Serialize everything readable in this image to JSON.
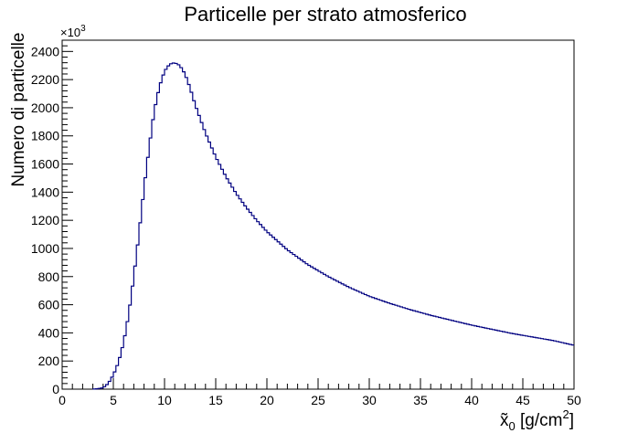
{
  "chart_data": {
    "type": "line",
    "title": "Particelle per strato atmosferico",
    "xlabel_main": "x̃",
    "xlabel_sub": "0",
    "xlabel_unit": " [g/cm",
    "xlabel_sup": "2",
    "xlabel_close": "]",
    "ylabel": "Numero di particelle",
    "y_multiplier_base": "×10",
    "y_multiplier_exp": "3",
    "xlim": [
      0,
      50
    ],
    "ylim": [
      0,
      2480
    ],
    "x_ticks": [
      "0",
      "5",
      "10",
      "15",
      "20",
      "25",
      "30",
      "35",
      "40",
      "45",
      "50"
    ],
    "y_ticks": [
      "0",
      "200",
      "400",
      "600",
      "800",
      "1000",
      "1200",
      "1400",
      "1600",
      "1800",
      "2000",
      "2200",
      "2400"
    ],
    "grid": false,
    "histogram_style": "step",
    "line_color": "#000080",
    "series": [
      {
        "x": [
          3.0,
          3.5,
          4.0,
          4.5,
          5.0,
          5.5,
          6.0,
          6.5,
          7.0,
          7.5,
          8.0,
          8.5,
          9.0,
          9.5,
          10.0,
          10.5,
          11.0,
          11.5,
          12.0,
          12.5,
          13.0,
          13.5,
          14.0,
          15.0,
          16.0,
          17.0,
          18.0,
          19.0,
          20.0,
          22.0,
          24.0,
          26.0,
          28.0,
          30.0,
          32.0,
          34.0,
          36.0,
          38.0,
          40.0,
          42.0,
          44.0,
          46.0,
          48.0,
          50.0
        ],
        "y": [
          0,
          3,
          10,
          40,
          100,
          190,
          330,
          530,
          800,
          1100,
          1430,
          1720,
          1980,
          2150,
          2260,
          2310,
          2320,
          2300,
          2240,
          2140,
          2020,
          1920,
          1820,
          1650,
          1510,
          1390,
          1290,
          1200,
          1120,
          990,
          885,
          800,
          725,
          660,
          610,
          565,
          525,
          490,
          455,
          425,
          395,
          370,
          345,
          312
        ]
      }
    ]
  }
}
